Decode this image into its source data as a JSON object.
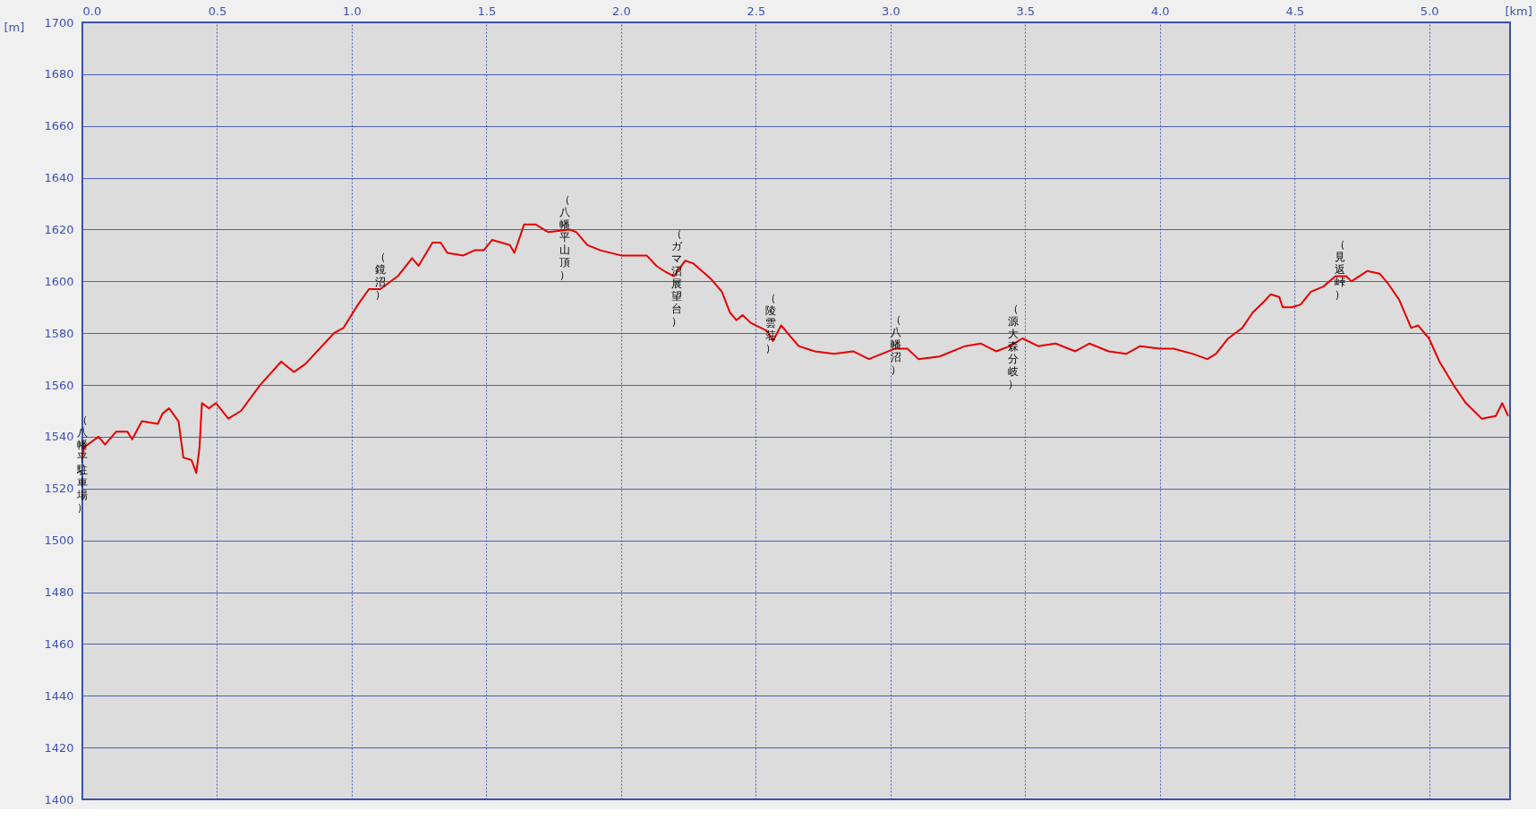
{
  "chart_data": {
    "type": "line",
    "xlabel": "[km]",
    "ylabel": "[m]",
    "xlim": [
      0,
      5.3
    ],
    "ylim": [
      1400,
      1700
    ],
    "xticks": [
      {
        "value": 0,
        "label": "0.0"
      },
      0.5,
      {
        "value": 1,
        "label": "1.0"
      },
      1.5,
      {
        "value": 2,
        "label": "2.0"
      },
      2.5,
      {
        "value": 3,
        "label": "3.0"
      },
      3.5,
      {
        "value": 4,
        "label": "4.0"
      },
      4.5,
      {
        "value": 5,
        "label": "5.0"
      }
    ],
    "yticks": [
      1400,
      1420,
      1440,
      1460,
      1480,
      1500,
      1520,
      1540,
      1560,
      1580,
      1600,
      1620,
      1640,
      1660,
      1680,
      1700
    ],
    "grid": true,
    "legend": false,
    "marker": "none",
    "line_style": "solid",
    "series": [
      {
        "color": "#e60000",
        "x": [
          0,
          0.007,
          0.06,
          0.084,
          0.126,
          0.167,
          0.185,
          0.221,
          0.28,
          0.298,
          0.322,
          0.357,
          0.375,
          0.405,
          0.423,
          0.435,
          0.444,
          0.47,
          0.496,
          0.542,
          0.589,
          0.66,
          0.738,
          0.785,
          0.827,
          0.934,
          0.969,
          1.023,
          1.064,
          1.106,
          1.171,
          1.224,
          1.248,
          1.3,
          1.33,
          1.355,
          1.414,
          1.456,
          1.49,
          1.521,
          1.587,
          1.604,
          1.64,
          1.682,
          1.73,
          1.81,
          1.834,
          1.875,
          1.923,
          2.0,
          2.095,
          2.131,
          2.16,
          2.196,
          2.238,
          2.267,
          2.333,
          2.374,
          2.404,
          2.428,
          2.451,
          2.481,
          2.54,
          2.564,
          2.594,
          2.659,
          2.719,
          2.79,
          2.861,
          2.92,
          3.015,
          3.063,
          3.104,
          3.182,
          3.277,
          3.336,
          3.392,
          3.444,
          3.49,
          3.548,
          3.613,
          3.686,
          3.738,
          3.81,
          3.875,
          3.927,
          4.0,
          4.051,
          4.123,
          4.176,
          4.208,
          4.254,
          4.306,
          4.345,
          4.385,
          4.411,
          4.443,
          4.456,
          4.49,
          4.522,
          4.561,
          4.607,
          4.652,
          4.692,
          4.711,
          4.77,
          4.816,
          4.848,
          4.888,
          4.933,
          4.959,
          4.999,
          5.038,
          5.09,
          5.136,
          5.195,
          5.247,
          5.271,
          5.293
        ],
        "values": [
          1532,
          1536,
          1540,
          1537,
          1542,
          1542,
          1539,
          1546,
          1545,
          1549,
          1551,
          1546,
          1532,
          1531,
          1526,
          1536,
          1553,
          1551,
          1553,
          1547,
          1550,
          1560,
          1569,
          1565,
          1568,
          1580,
          1582,
          1591,
          1597,
          1597,
          1602,
          1609,
          1606,
          1615,
          1615,
          1611,
          1610,
          1612,
          1612,
          1616,
          1614,
          1611,
          1622,
          1622,
          1619,
          1620,
          1619,
          1614,
          1612,
          1610,
          1610,
          1606,
          1604,
          1602,
          1608,
          1607,
          1601,
          1596,
          1588,
          1585,
          1587,
          1584,
          1581,
          1577,
          1583,
          1575,
          1573,
          1572,
          1573,
          1570,
          1574,
          1574,
          1570,
          1571,
          1575,
          1576,
          1573,
          1575,
          1578,
          1575,
          1576,
          1573,
          1576,
          1573,
          1572,
          1575,
          1574,
          1574,
          1572,
          1570,
          1572,
          1578,
          1582,
          1588,
          1592,
          1595,
          1594,
          1590,
          1590,
          1591,
          1596,
          1598,
          1602,
          1602,
          1600,
          1604,
          1603,
          1599,
          1593,
          1582,
          1583,
          1578,
          1569,
          1560,
          1553,
          1547,
          1548,
          1553,
          1548
        ]
      }
    ],
    "annotations": [
      {
        "text": "（八幡平駐車場）",
        "x": 0.0,
        "y": 1535
      },
      {
        "text": "（鏡沼）",
        "x": 1.106,
        "y": 1598
      },
      {
        "text": "（八幡平山頂）",
        "x": 1.79,
        "y": 1620
      },
      {
        "text": "（ガマ沼展望台）",
        "x": 2.205,
        "y": 1607
      },
      {
        "text": "（陵雲荘）",
        "x": 2.555,
        "y": 1582
      },
      {
        "text": "（八幡沼）",
        "x": 3.02,
        "y": 1574
      },
      {
        "text": "（源大森分岐）",
        "x": 3.455,
        "y": 1578
      },
      {
        "text": "（見返峠）",
        "x": 4.67,
        "y": 1603
      }
    ]
  }
}
